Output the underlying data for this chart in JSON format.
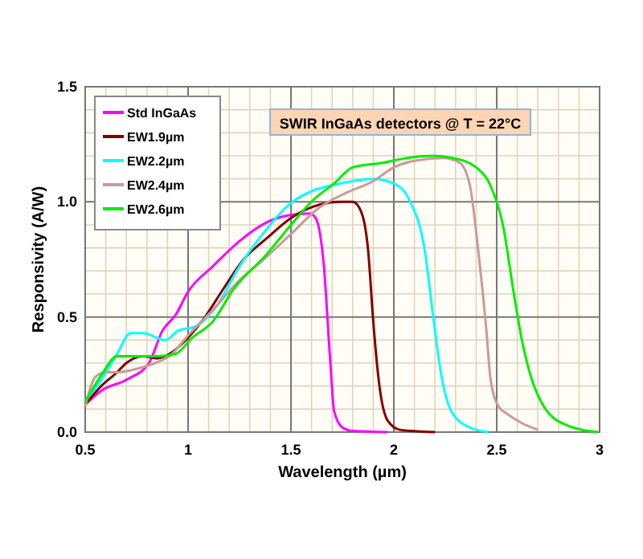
{
  "chart_data": {
    "type": "line",
    "title": "SWIR InGaAs detectors @ T = 22°C",
    "xlabel": "Wavelength (µm)",
    "ylabel": "Responsivity (A/W)",
    "xlim": [
      0.5,
      3
    ],
    "xticks": [
      0.5,
      1,
      1.5,
      2,
      2.5,
      3
    ],
    "ylim": [
      0,
      1.5
    ],
    "yticks": [
      {
        "value": 0,
        "label": "0.0"
      },
      {
        "value": 0.5,
        "label": "0.5"
      },
      {
        "value": 1,
        "label": "1.0"
      },
      {
        "value": 1.5,
        "label": "1.5"
      }
    ],
    "grid": true,
    "legend": "top left",
    "marker": "none",
    "line_style": "solid",
    "series": [
      {
        "name": "Std InGaAs",
        "color": "#ff00ff",
        "x": [
          0.5,
          0.578,
          0.707,
          0.81,
          0.875,
          0.94,
          1.0,
          1.12,
          1.25,
          1.38,
          1.48,
          1.59,
          1.62,
          1.66,
          1.69,
          1.71,
          1.75,
          1.8,
          1.97
        ],
        "values": [
          0.12,
          0.18,
          0.23,
          0.3,
          0.44,
          0.51,
          0.61,
          0.72,
          0.83,
          0.91,
          0.94,
          0.95,
          0.93,
          0.72,
          0.32,
          0.09,
          0.02,
          0.005,
          0
        ]
      },
      {
        "name": "EW1.9µm",
        "color": "#800000",
        "x": [
          0.5,
          0.578,
          0.655,
          0.7,
          0.78,
          0.85,
          0.91,
          1.0,
          1.09,
          1.17,
          1.27,
          1.38,
          1.5,
          1.61,
          1.74,
          1.8,
          1.84,
          1.875,
          1.9,
          1.93,
          1.97,
          2.03,
          2.2
        ],
        "values": [
          0.12,
          0.2,
          0.26,
          0.3,
          0.33,
          0.32,
          0.34,
          0.41,
          0.51,
          0.62,
          0.75,
          0.84,
          0.93,
          0.98,
          1.0,
          1.0,
          0.96,
          0.79,
          0.48,
          0.2,
          0.05,
          0.01,
          0
        ]
      },
      {
        "name": "EW2.2µm",
        "color": "#00ffff",
        "x": [
          0.5,
          0.58,
          0.655,
          0.72,
          0.78,
          0.89,
          0.95,
          1.04,
          1.14,
          1.25,
          1.38,
          1.48,
          1.61,
          1.69,
          1.8,
          1.9,
          2.0,
          2.08,
          2.15,
          2.19,
          2.23,
          2.28,
          2.37,
          2.46
        ],
        "values": [
          0.135,
          0.23,
          0.34,
          0.43,
          0.43,
          0.4,
          0.44,
          0.46,
          0.55,
          0.72,
          0.88,
          0.98,
          1.05,
          1.07,
          1.09,
          1.1,
          1.08,
          1.0,
          0.79,
          0.51,
          0.25,
          0.09,
          0.02,
          0
        ]
      },
      {
        "name": "EW2.4µm",
        "color": "#cc9999",
        "x": [
          0.5,
          0.55,
          0.6,
          0.655,
          0.73,
          0.84,
          0.91,
          1.01,
          1.12,
          1.25,
          1.38,
          1.5,
          1.63,
          1.77,
          1.9,
          2.0,
          2.11,
          2.24,
          2.32,
          2.37,
          2.41,
          2.45,
          2.47,
          2.51,
          2.55,
          2.62,
          2.7
        ],
        "values": [
          0.11,
          0.24,
          0.26,
          0.26,
          0.27,
          0.3,
          0.33,
          0.43,
          0.53,
          0.66,
          0.76,
          0.86,
          0.97,
          1.04,
          1.09,
          1.15,
          1.18,
          1.19,
          1.17,
          1.07,
          0.79,
          0.44,
          0.23,
          0.11,
          0.08,
          0.04,
          0.01
        ]
      },
      {
        "name": "EW2.6µm",
        "color": "#00ee00",
        "x": [
          0.5,
          0.58,
          0.655,
          0.76,
          0.86,
          0.94,
          1.02,
          1.12,
          1.22,
          1.38,
          1.5,
          1.61,
          1.71,
          1.8,
          1.95,
          2.06,
          2.19,
          2.29,
          2.4,
          2.47,
          2.53,
          2.58,
          2.62,
          2.67,
          2.73,
          2.84,
          2.99
        ],
        "values": [
          0.13,
          0.25,
          0.33,
          0.33,
          0.33,
          0.34,
          0.41,
          0.48,
          0.62,
          0.77,
          0.9,
          1.01,
          1.08,
          1.15,
          1.17,
          1.19,
          1.2,
          1.19,
          1.15,
          1.07,
          0.9,
          0.62,
          0.41,
          0.23,
          0.11,
          0.03,
          0
        ]
      }
    ]
  }
}
